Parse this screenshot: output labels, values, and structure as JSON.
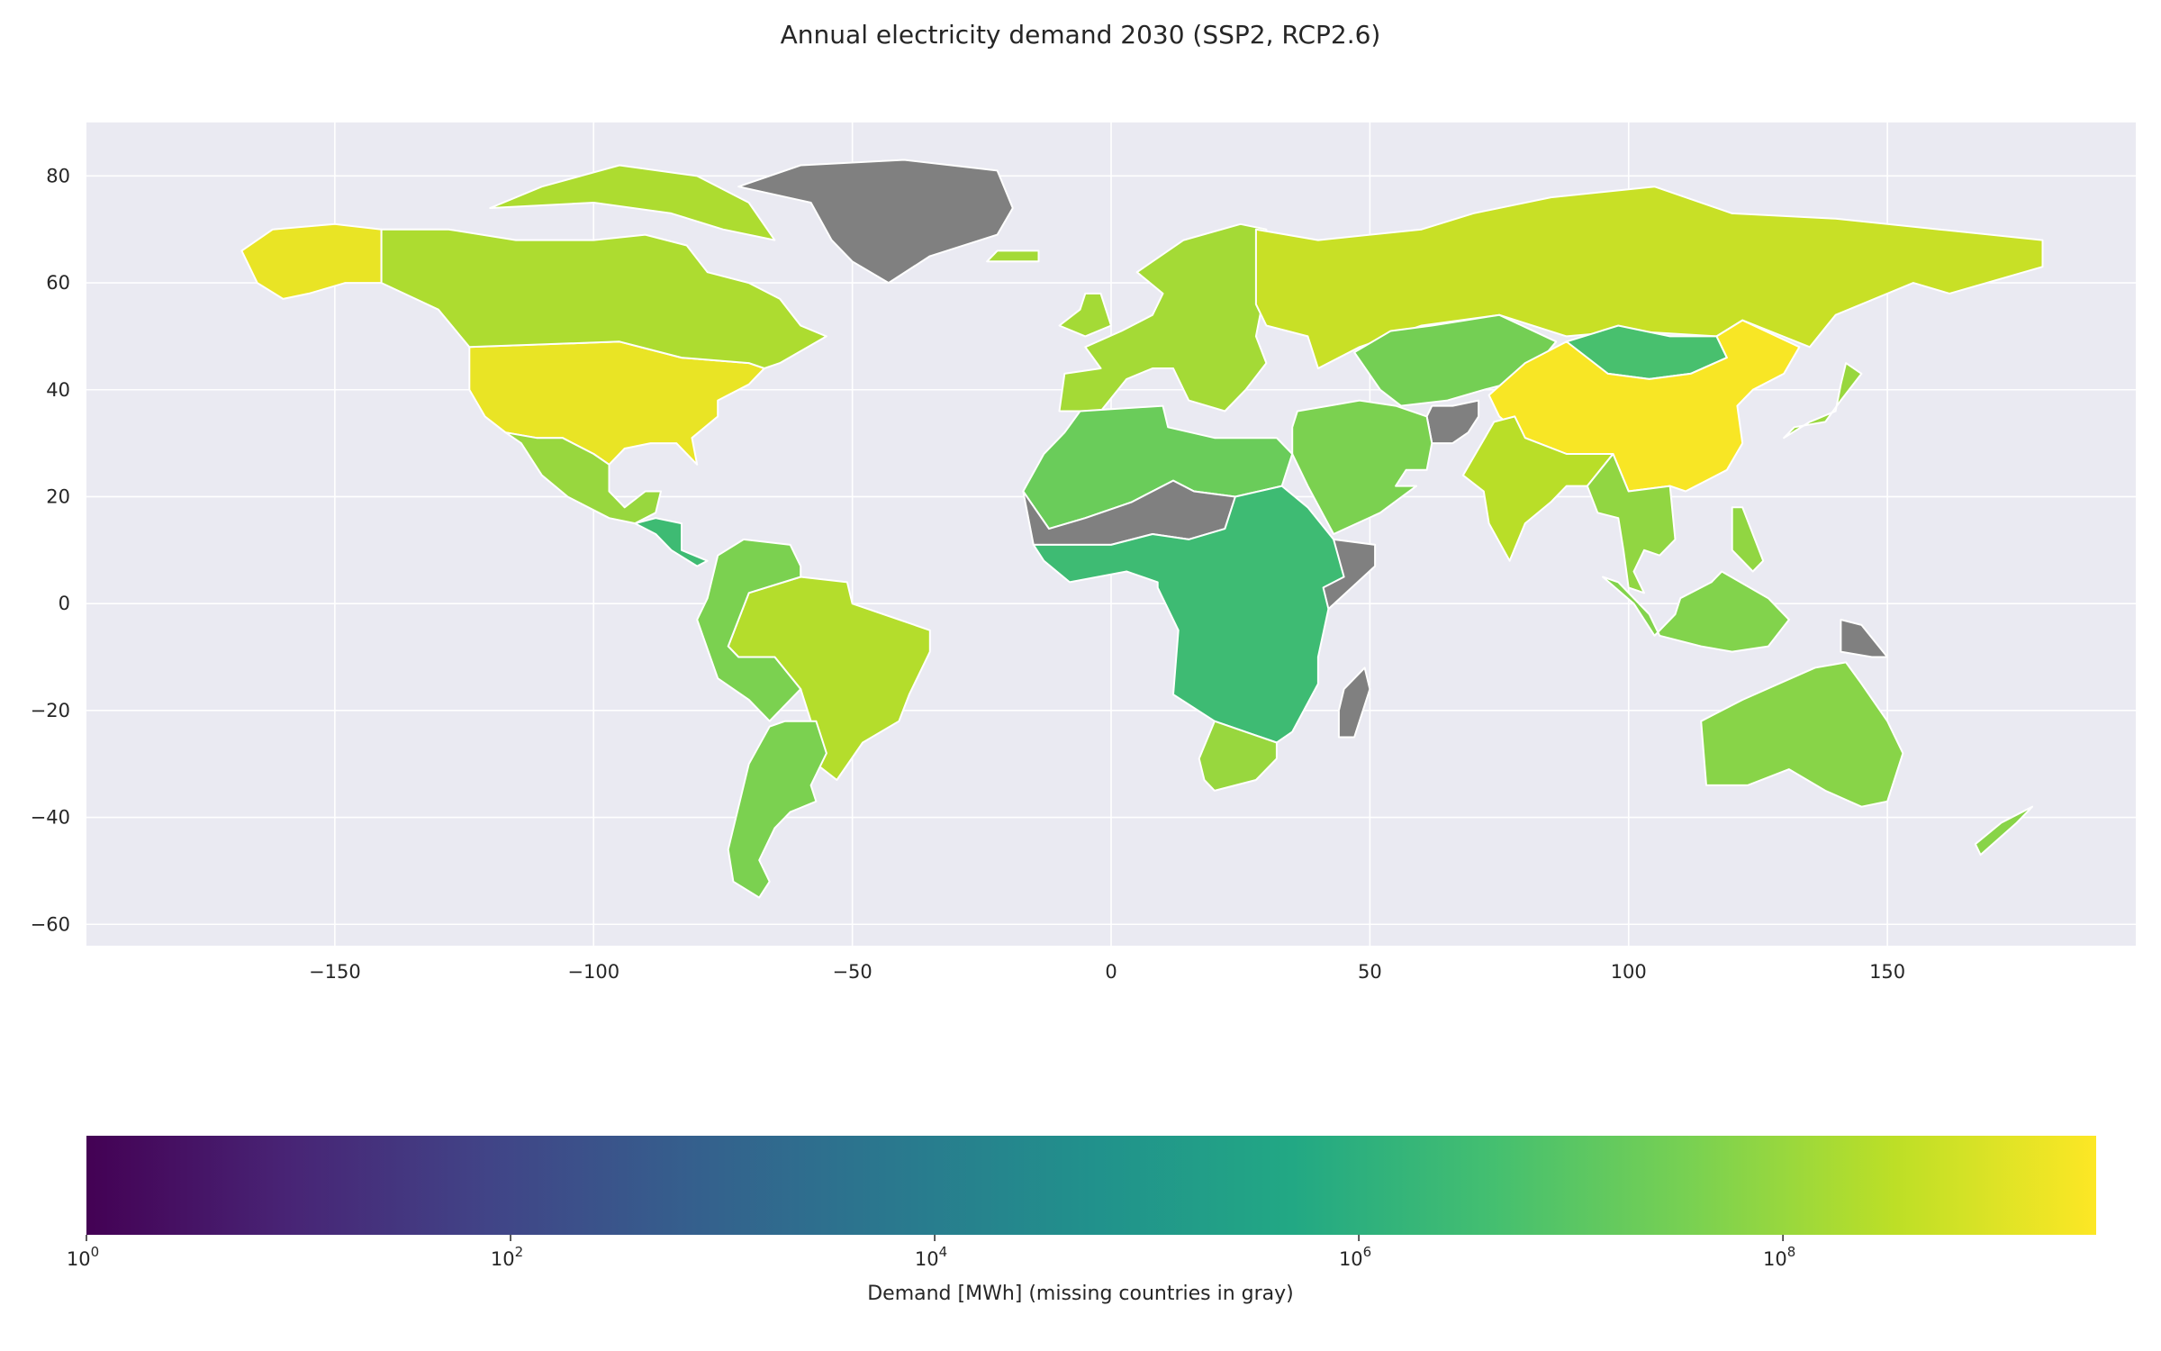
{
  "title": "Annual electricity demand 2030 (SSP2, RCP2.6)",
  "colorbar_label": "Demand [MWh] (missing countries in gray)",
  "colors": {
    "axes_background": "#eaeaf2",
    "grid": "#ffffff",
    "missing": "#808080",
    "land_border": "#ffffff"
  },
  "colormap": "viridis",
  "chart_data": {
    "type": "choropleth",
    "title": "Annual electricity demand 2030 (SSP2, RCP2.6)",
    "xlim": [
      -198,
      198
    ],
    "ylim": [
      -64,
      90
    ],
    "x_ticks": [
      -150,
      -100,
      -50,
      0,
      50,
      100,
      150
    ],
    "x_tick_labels": [
      "−150",
      "−100",
      "−50",
      "0",
      "50",
      "100",
      "150"
    ],
    "y_ticks": [
      80,
      60,
      40,
      20,
      0,
      -20,
      -40,
      -60
    ],
    "y_tick_labels": [
      "80",
      "60",
      "40",
      "20",
      "0",
      "−20",
      "−40",
      "−60"
    ],
    "grid": true,
    "colorbar": {
      "scale": "log",
      "min": 1,
      "max": 3000000000.0,
      "ticks": [
        1,
        100,
        10000,
        1000000,
        100000000
      ],
      "tick_labels": [
        "10",
        "10",
        "10",
        "10",
        "10"
      ],
      "tick_exponents": [
        "0",
        "2",
        "4",
        "6",
        "8"
      ],
      "label": "Demand [MWh] (missing countries in gray)"
    },
    "regions": [
      {
        "name": "United States",
        "demand_mwh": 1500000000
      },
      {
        "name": "China",
        "demand_mwh": 2500000000
      },
      {
        "name": "Russia",
        "demand_mwh": 500000000
      },
      {
        "name": "India",
        "demand_mwh": 300000000
      },
      {
        "name": "Canada",
        "demand_mwh": 200000000
      },
      {
        "name": "Brazil",
        "demand_mwh": 250000000
      },
      {
        "name": "Europe",
        "demand_mwh": 150000000
      },
      {
        "name": "Mexico",
        "demand_mwh": 100000000
      },
      {
        "name": "Australia",
        "demand_mwh": 60000000
      },
      {
        "name": "Argentina",
        "demand_mwh": 40000000
      },
      {
        "name": "Kazakhstan",
        "demand_mwh": 30000000
      },
      {
        "name": "Middle East",
        "demand_mwh": 40000000
      },
      {
        "name": "North Africa",
        "demand_mwh": 20000000
      },
      {
        "name": "South Africa",
        "demand_mwh": 100000000
      },
      {
        "name": "Central Africa",
        "demand_mwh": 3000000
      },
      {
        "name": "Mongolia",
        "demand_mwh": 5000000
      },
      {
        "name": "Southeast Asia",
        "demand_mwh": 80000000
      },
      {
        "name": "Indonesia",
        "demand_mwh": 50000000
      },
      {
        "name": "Japan",
        "demand_mwh": 100000000
      },
      {
        "name": "Greenland",
        "demand_mwh": null
      },
      {
        "name": "Afghanistan",
        "demand_mwh": null
      },
      {
        "name": "Madagascar",
        "demand_mwh": null
      },
      {
        "name": "Somalia",
        "demand_mwh": null
      },
      {
        "name": "Sahel",
        "demand_mwh": null
      },
      {
        "name": "Papua New Guinea",
        "demand_mwh": null
      }
    ]
  }
}
